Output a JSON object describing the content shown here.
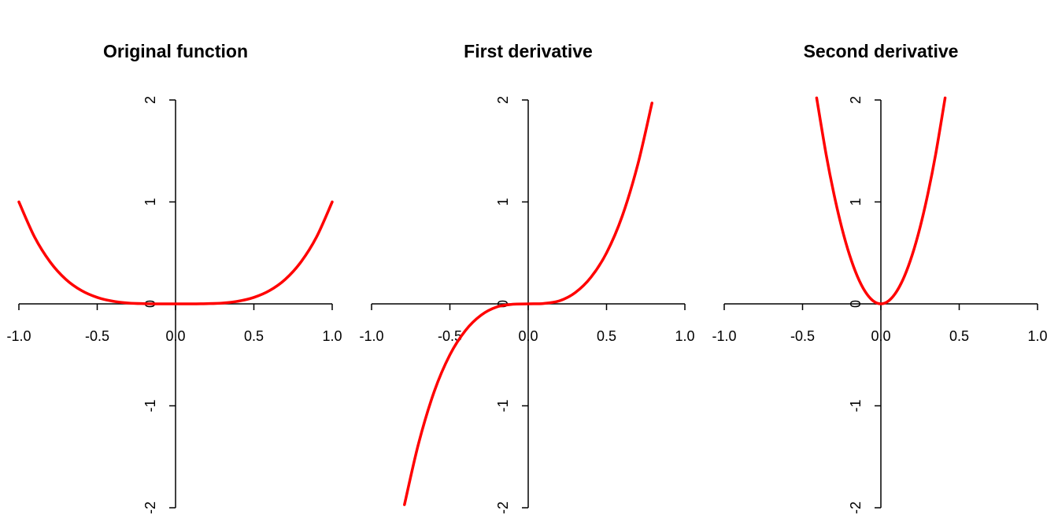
{
  "chart_data": [
    {
      "type": "line",
      "title": "Original function",
      "xlim": [
        -1,
        1
      ],
      "ylim": [
        -2,
        2
      ],
      "x_ticks": [
        "-1.0",
        "-0.5",
        "0.0",
        "0.5",
        "1.0"
      ],
      "y_ticks": [
        "-2",
        "-1",
        "0",
        "1",
        "2"
      ],
      "grid": false,
      "series": [
        {
          "color": "#ff0000",
          "x": [
            -1.0,
            -0.9,
            -0.8,
            -0.7,
            -0.6,
            -0.5,
            -0.4,
            -0.3,
            -0.2,
            -0.1,
            0.0,
            0.1,
            0.2,
            0.3,
            0.4,
            0.5,
            0.6,
            0.7,
            0.8,
            0.9,
            1.0
          ],
          "y": [
            1.0,
            0.656,
            0.41,
            0.24,
            0.13,
            0.063,
            0.026,
            0.008,
            0.002,
            0.0,
            0.0,
            0.0,
            0.002,
            0.008,
            0.026,
            0.063,
            0.13,
            0.24,
            0.41,
            0.656,
            1.0
          ]
        }
      ]
    },
    {
      "type": "line",
      "title": "First derivative",
      "xlim": [
        -1,
        1
      ],
      "ylim": [
        -2,
        2
      ],
      "x_ticks": [
        "-1.0",
        "-0.5",
        "0.0",
        "0.5",
        "1.0"
      ],
      "y_ticks": [
        "-2",
        "-1",
        "0",
        "1",
        "2"
      ],
      "grid": false,
      "series": [
        {
          "color": "#ff0000",
          "x": [
            -0.79,
            -0.7,
            -0.6,
            -0.5,
            -0.4,
            -0.3,
            -0.2,
            -0.1,
            0.0,
            0.1,
            0.2,
            0.3,
            0.4,
            0.5,
            0.6,
            0.7,
            0.79
          ],
          "y": [
            -1.97,
            -1.37,
            -0.86,
            -0.5,
            -0.26,
            -0.11,
            -0.03,
            -0.004,
            0.0,
            0.004,
            0.03,
            0.11,
            0.26,
            0.5,
            0.86,
            1.37,
            1.97
          ]
        }
      ]
    },
    {
      "type": "line",
      "title": "Second derivative",
      "xlim": [
        -1,
        1
      ],
      "ylim": [
        -2,
        2
      ],
      "x_ticks": [
        "-1.0",
        "-0.5",
        "0.0",
        "0.5",
        "1.0"
      ],
      "y_ticks": [
        "-2",
        "-1",
        "0",
        "1",
        "2"
      ],
      "grid": false,
      "series": [
        {
          "color": "#ff0000",
          "x": [
            -0.41,
            -0.35,
            -0.3,
            -0.25,
            -0.2,
            -0.15,
            -0.1,
            -0.05,
            0.0,
            0.05,
            0.1,
            0.15,
            0.2,
            0.25,
            0.3,
            0.35,
            0.41
          ],
          "y": [
            2.02,
            1.47,
            1.08,
            0.75,
            0.48,
            0.27,
            0.12,
            0.03,
            0.0,
            0.03,
            0.12,
            0.27,
            0.48,
            0.75,
            1.08,
            1.47,
            2.02
          ]
        }
      ]
    }
  ]
}
